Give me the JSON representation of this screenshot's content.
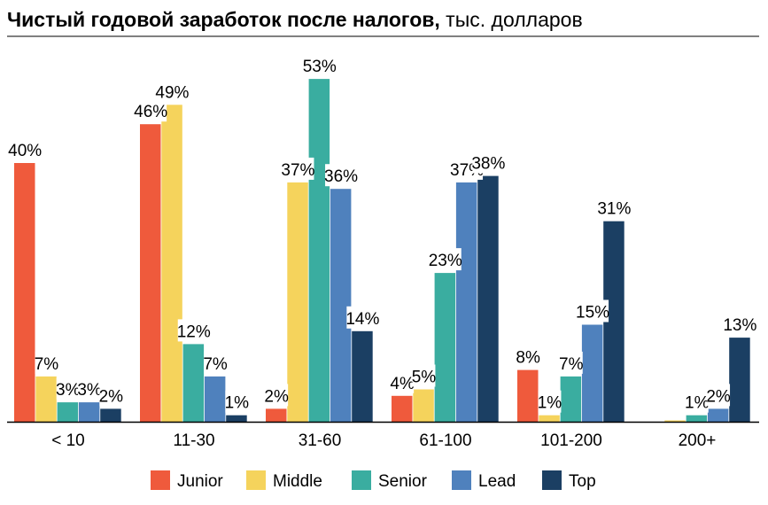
{
  "chart_data": {
    "type": "bar",
    "title_bold": "Чистый годовой заработок после налогов,",
    "title_rest": " тыс. долларов",
    "categories": [
      "< 10",
      "11-30",
      "31-60",
      "61-100",
      "101-200",
      "200+"
    ],
    "ylim": [
      0,
      55
    ],
    "grid": false,
    "legend_placement": "bottom",
    "series": [
      {
        "name": "Junior",
        "color": "#EF5A3C",
        "values": [
          40,
          46,
          2,
          4,
          8,
          null
        ],
        "labels": [
          "40%",
          "46%",
          "2%",
          "4%",
          "8%",
          ""
        ]
      },
      {
        "name": "Middle",
        "color": "#F5D35C",
        "values": [
          7,
          49,
          37,
          5,
          1,
          0.2
        ],
        "labels": [
          "7%",
          "49%",
          "37%",
          "5%",
          "1%",
          ""
        ]
      },
      {
        "name": "Senior",
        "color": "#3AADA0",
        "values": [
          3,
          12,
          53,
          23,
          7,
          1
        ],
        "labels": [
          "3%",
          "12%",
          "53%",
          "23%",
          "7%",
          "1%"
        ]
      },
      {
        "name": "Lead",
        "color": "#4F81BD",
        "values": [
          3,
          7,
          36,
          37,
          15,
          2
        ],
        "labels": [
          "3%",
          "7%",
          "36%",
          "37%",
          "15%",
          "2%"
        ]
      },
      {
        "name": "Top",
        "color": "#1B3F63",
        "values": [
          2,
          1,
          14,
          38,
          31,
          13
        ],
        "labels": [
          "2%",
          "1%",
          "14%",
          "38%",
          "31%",
          "13%"
        ]
      }
    ]
  }
}
